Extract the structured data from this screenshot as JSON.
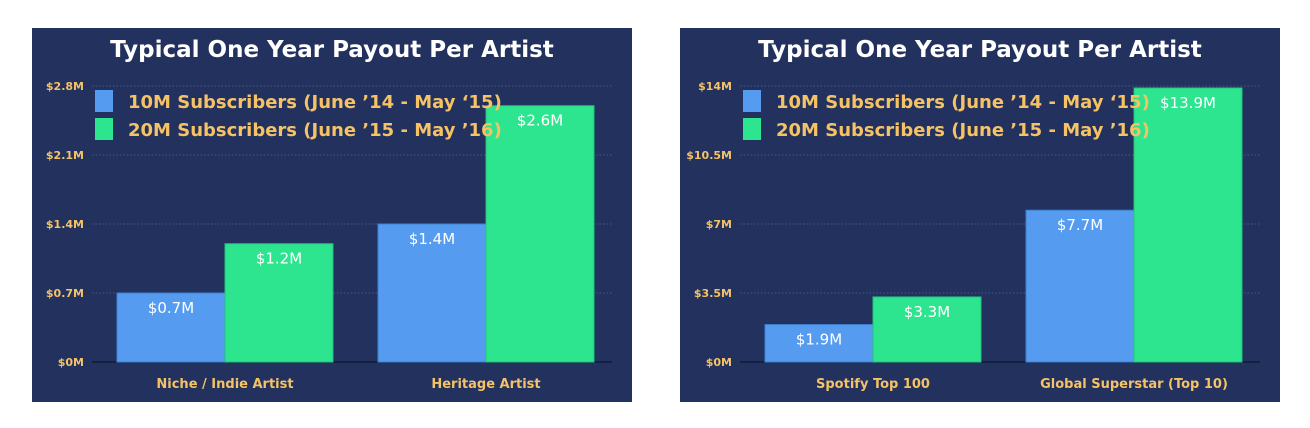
{
  "colors": {
    "background": "#22315e",
    "series1": "#559cf0",
    "series2": "#2ee58f",
    "label": "#f5c266",
    "value_text": "#ffffff",
    "title": "#ffffff"
  },
  "chart_data": [
    {
      "type": "bar",
      "title": "Typical One Year Payout Per Artist",
      "categories": [
        "Niche / Indie Artist",
        "Heritage Artist"
      ],
      "series": [
        {
          "name": "10M Subscribers (June ’14 - May ‘15)",
          "values": [
            0.7,
            1.4
          ],
          "labels": [
            "$0.7M",
            "$1.4M"
          ]
        },
        {
          "name": "20M Subscribers (June ’15 - May ’16)",
          "values": [
            1.2,
            2.6
          ],
          "labels": [
            "$1.2M",
            "$2.6M"
          ]
        }
      ],
      "yticks": [
        0,
        0.7,
        1.4,
        2.1,
        2.8
      ],
      "ytick_labels": [
        "$0M",
        "$0.7M",
        "$1.4M",
        "$2.1M",
        "$2.8M"
      ],
      "ylim": [
        0,
        2.8
      ],
      "grid": true,
      "legend": "top-left"
    },
    {
      "type": "bar",
      "title": "Typical One Year Payout Per Artist",
      "categories": [
        "Spotify Top 100",
        "Global Superstar (Top 10)"
      ],
      "series": [
        {
          "name": "10M Subscribers (June ’14 - May ‘15)",
          "values": [
            1.9,
            7.7
          ],
          "labels": [
            "$1.9M",
            "$7.7M"
          ]
        },
        {
          "name": "20M Subscribers (June ’15 - May ’16)",
          "values": [
            3.3,
            13.9
          ],
          "labels": [
            "$3.3M",
            "$13.9M"
          ]
        }
      ],
      "yticks": [
        0,
        3.5,
        7,
        10.5,
        14
      ],
      "ytick_labels": [
        "$0M",
        "$3.5M",
        "$7M",
        "$10.5M",
        "$14M"
      ],
      "ylim": [
        0,
        14
      ],
      "grid": true,
      "legend": "top-left"
    }
  ]
}
